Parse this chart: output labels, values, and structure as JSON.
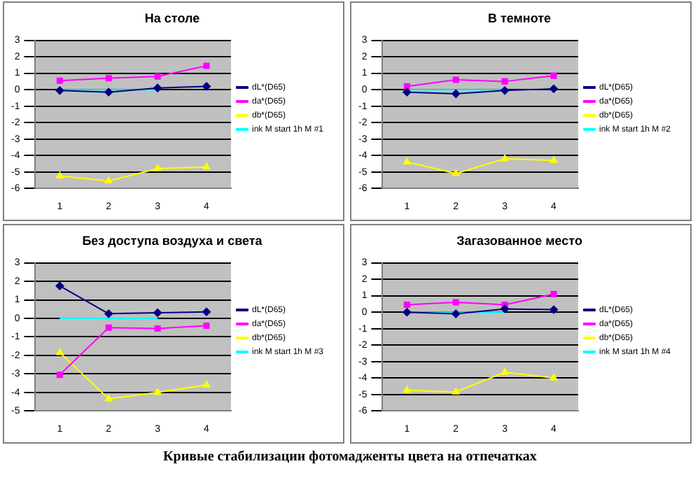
{
  "chart_data": [
    {
      "type": "line",
      "title": "На столе",
      "categories": [
        "1",
        "2",
        "3",
        "4"
      ],
      "ylim": [
        -6,
        3
      ],
      "yticks": [
        -6,
        -5,
        -4,
        -3,
        -2,
        -1,
        0,
        1,
        2,
        3
      ],
      "grid": "y",
      "legend": "right",
      "series": [
        {
          "name": "dL*(D65)",
          "color": "#000080",
          "marker": "diamond",
          "values": [
            -0.05,
            -0.15,
            0.1,
            0.2
          ]
        },
        {
          "name": "da*(D65)",
          "color": "#ff00ff",
          "marker": "square",
          "values": [
            0.55,
            0.7,
            0.8,
            1.45
          ]
        },
        {
          "name": "db*(D65)",
          "color": "#ffff00",
          "marker": "triangle",
          "values": [
            -5.25,
            -5.55,
            -4.8,
            -4.7
          ]
        },
        {
          "name": "ink M start 1h M #1",
          "color": "#00ffff",
          "marker": "none",
          "values": [
            0,
            0,
            0,
            null
          ]
        }
      ]
    },
    {
      "type": "line",
      "title": "В темноте",
      "categories": [
        "1",
        "2",
        "3",
        "4"
      ],
      "ylim": [
        -6,
        3
      ],
      "yticks": [
        -6,
        -5,
        -4,
        -3,
        -2,
        -1,
        0,
        1,
        2,
        3
      ],
      "grid": "y",
      "legend": "right",
      "series": [
        {
          "name": "dL*(D65)",
          "color": "#000080",
          "marker": "diamond",
          "values": [
            -0.15,
            -0.25,
            -0.05,
            0.05
          ]
        },
        {
          "name": "da*(D65)",
          "color": "#ff00ff",
          "marker": "square",
          "values": [
            0.2,
            0.6,
            0.5,
            0.85
          ]
        },
        {
          "name": "db*(D65)",
          "color": "#ffff00",
          "marker": "triangle",
          "values": [
            -4.4,
            -5.1,
            -4.2,
            -4.3
          ]
        },
        {
          "name": "ink M start 1h M #2",
          "color": "#00ffff",
          "marker": "none",
          "values": [
            0,
            0,
            0,
            null
          ]
        }
      ]
    },
    {
      "type": "line",
      "title": "Без доступа воздуха и света",
      "categories": [
        "1",
        "2",
        "3",
        "4"
      ],
      "ylim": [
        -5,
        3
      ],
      "yticks": [
        -5,
        -4,
        -3,
        -2,
        -1,
        0,
        1,
        2,
        3
      ],
      "grid": "y",
      "legend": "right",
      "series": [
        {
          "name": "dL*(D65)",
          "color": "#000080",
          "marker": "diamond",
          "values": [
            1.75,
            0.25,
            0.3,
            0.35
          ]
        },
        {
          "name": "da*(D65)",
          "color": "#ff00ff",
          "marker": "square",
          "values": [
            -3.05,
            -0.5,
            -0.55,
            -0.4
          ]
        },
        {
          "name": "db*(D65)",
          "color": "#ffff00",
          "marker": "triangle",
          "values": [
            -1.85,
            -4.35,
            -4,
            -3.6
          ]
        },
        {
          "name": "ink M start 1h M #3",
          "color": "#00ffff",
          "marker": "none",
          "values": [
            0,
            0,
            0,
            null
          ]
        }
      ]
    },
    {
      "type": "line",
      "title": "Загазованное место",
      "categories": [
        "1",
        "2",
        "3",
        "4"
      ],
      "ylim": [
        -6,
        3
      ],
      "yticks": [
        -6,
        -5,
        -4,
        -3,
        -2,
        -1,
        0,
        1,
        2,
        3
      ],
      "grid": "y",
      "legend": "right",
      "annotations": [
        "Кривые стабилизации фотомадженты цвета на отпечатках"
      ],
      "series": [
        {
          "name": "dL*(D65)",
          "color": "#000080",
          "marker": "diamond",
          "values": [
            0,
            -0.1,
            0.2,
            0.15
          ]
        },
        {
          "name": "da*(D65)",
          "color": "#ff00ff",
          "marker": "square",
          "values": [
            0.45,
            0.6,
            0.45,
            1.1
          ]
        },
        {
          "name": "db*(D65)",
          "color": "#ffff00",
          "marker": "triangle",
          "values": [
            -4.75,
            -4.85,
            -3.65,
            -4
          ]
        },
        {
          "name": "ink M start 1h M #4",
          "color": "#00ffff",
          "marker": "none",
          "values": [
            0,
            0,
            0,
            null
          ]
        }
      ]
    }
  ]
}
